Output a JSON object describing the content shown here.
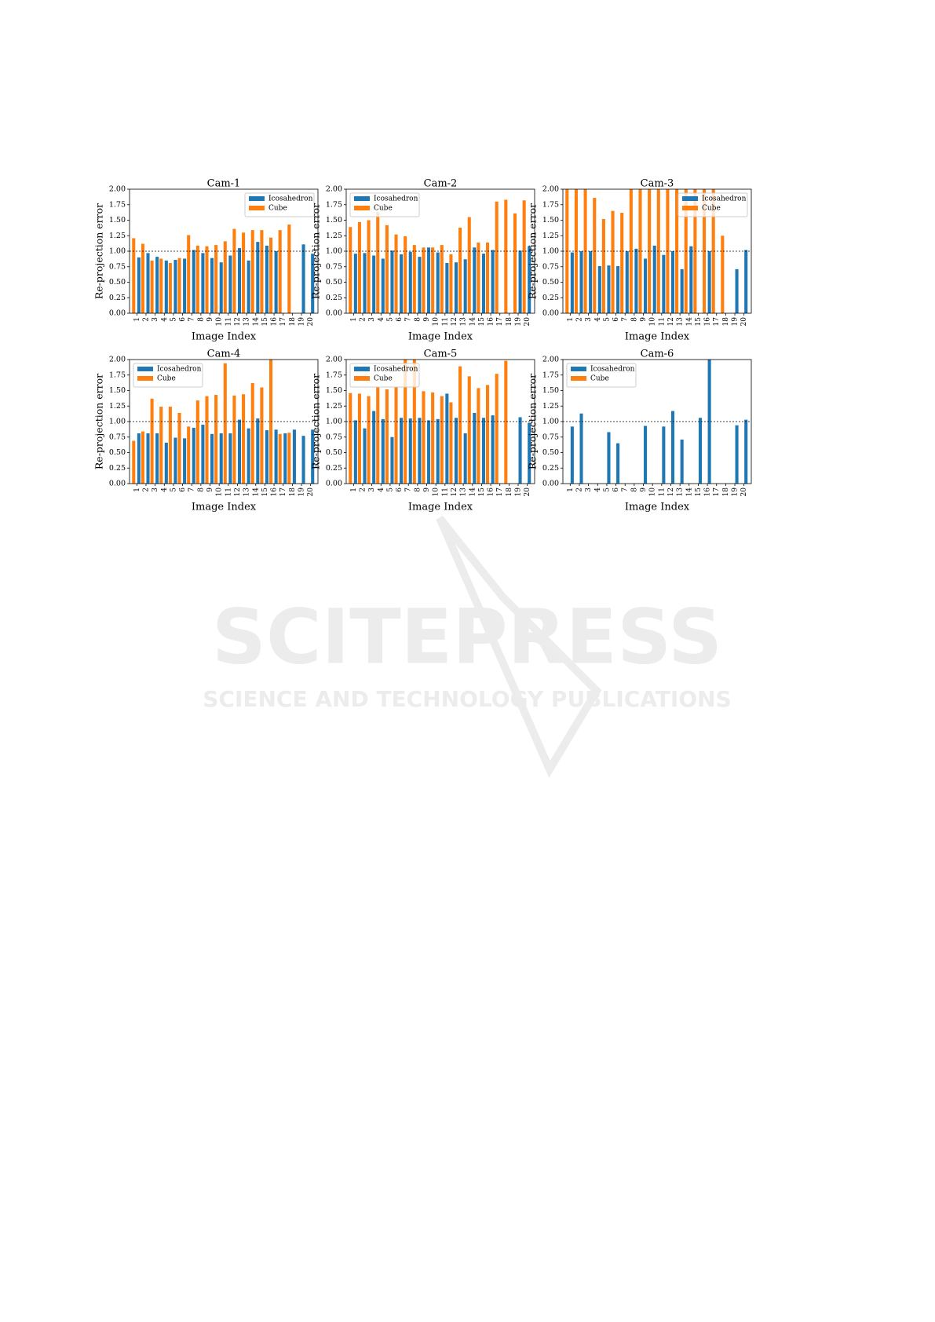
{
  "chart_data": [
    {
      "type": "bar",
      "title": "Cam-1",
      "xlabel": "Image Index",
      "ylabel": "Re-projection error",
      "categories": [
        "1",
        "2",
        "3",
        "4",
        "5",
        "6",
        "7",
        "8",
        "9",
        "10",
        "11",
        "12",
        "13",
        "14",
        "15",
        "16",
        "17",
        "18",
        "19",
        "20"
      ],
      "series": [
        {
          "name": "Icosahedron",
          "color": "#1f77b4",
          "values": [
            0.9,
            0.97,
            0.91,
            0.85,
            0.86,
            0.88,
            1.02,
            0.97,
            0.89,
            0.82,
            0.93,
            1.05,
            0.85,
            1.15,
            1.09,
            1.0,
            null,
            null,
            1.11,
            0.96
          ]
        },
        {
          "name": "Cube",
          "color": "#ff7f0e",
          "values": [
            1.21,
            1.12,
            0.85,
            0.88,
            0.81,
            0.89,
            1.26,
            1.09,
            1.08,
            1.1,
            1.16,
            1.36,
            1.3,
            1.34,
            1.34,
            1.22,
            1.34,
            1.43,
            null,
            null
          ]
        }
      ],
      "ylim": [
        0,
        2
      ],
      "yticks": [
        {
          "value": 0,
          "label": "0.00"
        },
        {
          "value": 0.25,
          "label": "0.25"
        },
        {
          "value": 0.5,
          "label": "0.50"
        },
        {
          "value": 0.75,
          "label": "0.75"
        },
        {
          "value": 1,
          "label": "1.00"
        },
        {
          "value": 1.25,
          "label": "1.25"
        },
        {
          "value": 1.5,
          "label": "1.50"
        },
        {
          "value": 1.75,
          "label": "1.75"
        },
        {
          "value": 2,
          "label": "2.00"
        }
      ],
      "hline": 1,
      "legend": "upper right"
    },
    {
      "type": "bar",
      "title": "Cam-2",
      "xlabel": "Image Index",
      "ylabel": "Re-projection error",
      "categories": [
        "1",
        "2",
        "3",
        "4",
        "5",
        "6",
        "7",
        "8",
        "9",
        "10",
        "11",
        "12",
        "13",
        "14",
        "15",
        "16",
        "17",
        "18",
        "19",
        "20"
      ],
      "series": [
        {
          "name": "Icosahedron",
          "color": "#1f77b4",
          "values": [
            0.96,
            0.97,
            0.93,
            0.88,
            1.01,
            0.95,
            0.99,
            0.91,
            1.06,
            0.98,
            0.81,
            0.82,
            0.87,
            1.06,
            0.96,
            1.02,
            null,
            null,
            1.01,
            1.08
          ]
        },
        {
          "name": "Cube",
          "color": "#ff7f0e",
          "values": [
            1.39,
            1.47,
            1.5,
            1.63,
            1.42,
            1.27,
            1.24,
            1.1,
            1.06,
            1.06,
            1.1,
            0.95,
            1.38,
            1.55,
            1.14,
            1.14,
            1.8,
            1.83,
            1.61,
            1.82
          ]
        }
      ],
      "ylim": [
        0,
        2
      ],
      "yticks": [
        {
          "value": 0,
          "label": "0.00"
        },
        {
          "value": 0.25,
          "label": "0.25"
        },
        {
          "value": 0.5,
          "label": "0.50"
        },
        {
          "value": 0.75,
          "label": "0.75"
        },
        {
          "value": 1,
          "label": "1.00"
        },
        {
          "value": 1.25,
          "label": "1.25"
        },
        {
          "value": 1.5,
          "label": "1.50"
        },
        {
          "value": 1.75,
          "label": "1.75"
        },
        {
          "value": 2,
          "label": "2.00"
        }
      ],
      "hline": 1,
      "legend": "upper left"
    },
    {
      "type": "bar",
      "title": "Cam-3",
      "xlabel": "Image Index",
      "ylabel": "Re-projection error",
      "categories": [
        "1",
        "2",
        "3",
        "4",
        "5",
        "6",
        "7",
        "8",
        "9",
        "10",
        "11",
        "12",
        "13",
        "14",
        "15",
        "16",
        "17",
        "18",
        "19",
        "20"
      ],
      "series": [
        {
          "name": "Icosahedron",
          "color": "#1f77b4",
          "values": [
            0.98,
            1.0,
            1.0,
            0.76,
            0.77,
            0.76,
            1.0,
            1.04,
            0.88,
            1.09,
            0.94,
            1.0,
            0.71,
            1.08,
            null,
            1.0,
            null,
            null,
            0.71,
            1.02
          ]
        },
        {
          "name": "Cube",
          "color": "#ff7f0e",
          "values": [
            2.0,
            2.0,
            2.0,
            1.86,
            1.52,
            1.65,
            1.62,
            2.0,
            2.0,
            2.0,
            2.0,
            2.0,
            2.0,
            2.0,
            2.0,
            2.0,
            2.0,
            1.25,
            null,
            null
          ]
        }
      ],
      "ylim": [
        0,
        2
      ],
      "yticks": [
        {
          "value": 0,
          "label": "0.00"
        },
        {
          "value": 0.25,
          "label": "0.25"
        },
        {
          "value": 0.5,
          "label": "0.50"
        },
        {
          "value": 0.75,
          "label": "0.75"
        },
        {
          "value": 1,
          "label": "1.00"
        },
        {
          "value": 1.25,
          "label": "1.25"
        },
        {
          "value": 1.5,
          "label": "1.50"
        },
        {
          "value": 1.75,
          "label": "1.75"
        },
        {
          "value": 2,
          "label": "2.00"
        }
      ],
      "hline": 1,
      "legend": "upper right"
    },
    {
      "type": "bar",
      "title": "Cam-4",
      "xlabel": "Image Index",
      "ylabel": "Re-projection error",
      "categories": [
        "1",
        "2",
        "3",
        "4",
        "5",
        "6",
        "7",
        "8",
        "9",
        "10",
        "11",
        "12",
        "13",
        "14",
        "15",
        "16",
        "17",
        "18",
        "19",
        "20"
      ],
      "series": [
        {
          "name": "Icosahedron",
          "color": "#1f77b4",
          "values": [
            0.81,
            0.81,
            0.81,
            0.66,
            0.74,
            0.73,
            0.9,
            0.95,
            0.8,
            0.81,
            0.81,
            1.03,
            0.89,
            1.05,
            0.86,
            0.87,
            0.81,
            0.87,
            0.77,
            0.87
          ]
        },
        {
          "name": "Cube",
          "color": "#ff7f0e",
          "values": [
            0.69,
            0.84,
            1.37,
            1.24,
            1.24,
            1.14,
            0.92,
            1.34,
            1.41,
            1.43,
            1.94,
            1.42,
            1.44,
            1.62,
            1.55,
            2.0,
            0.8,
            0.82,
            null,
            null
          ]
        }
      ],
      "ylim": [
        0,
        2
      ],
      "yticks": [
        {
          "value": 0,
          "label": "0.00"
        },
        {
          "value": 0.25,
          "label": "0.25"
        },
        {
          "value": 0.5,
          "label": "0.50"
        },
        {
          "value": 0.75,
          "label": "0.75"
        },
        {
          "value": 1,
          "label": "1.00"
        },
        {
          "value": 1.25,
          "label": "1.25"
        },
        {
          "value": 1.5,
          "label": "1.50"
        },
        {
          "value": 1.75,
          "label": "1.75"
        },
        {
          "value": 2,
          "label": "2.00"
        }
      ],
      "hline": 1,
      "legend": "upper left"
    },
    {
      "type": "bar",
      "title": "Cam-5",
      "xlabel": "Image Index",
      "ylabel": "Re-projection error",
      "categories": [
        "1",
        "2",
        "3",
        "4",
        "5",
        "6",
        "7",
        "8",
        "9",
        "10",
        "11",
        "12",
        "13",
        "14",
        "15",
        "16",
        "17",
        "18",
        "19",
        "20"
      ],
      "series": [
        {
          "name": "Icosahedron",
          "color": "#1f77b4",
          "values": [
            1.02,
            0.89,
            1.17,
            1.04,
            0.75,
            1.06,
            1.05,
            1.06,
            1.02,
            1.04,
            1.45,
            1.06,
            0.81,
            1.14,
            1.06,
            1.1,
            null,
            null,
            1.07,
            0.98
          ]
        },
        {
          "name": "Cube",
          "color": "#ff7f0e",
          "values": [
            1.46,
            1.45,
            1.41,
            1.55,
            1.52,
            1.55,
            2.0,
            2.0,
            1.49,
            1.47,
            1.41,
            1.31,
            1.89,
            1.73,
            1.54,
            1.59,
            1.77,
            1.98,
            null,
            null
          ]
        }
      ],
      "ylim": [
        0,
        2
      ],
      "yticks": [
        {
          "value": 0,
          "label": "0.00"
        },
        {
          "value": 0.25,
          "label": "0.25"
        },
        {
          "value": 0.5,
          "label": "0.50"
        },
        {
          "value": 0.75,
          "label": "0.75"
        },
        {
          "value": 1,
          "label": "1.00"
        },
        {
          "value": 1.25,
          "label": "1.25"
        },
        {
          "value": 1.5,
          "label": "1.50"
        },
        {
          "value": 1.75,
          "label": "1.75"
        },
        {
          "value": 2,
          "label": "2.00"
        }
      ],
      "hline": 1,
      "legend": "upper left"
    },
    {
      "type": "bar",
      "title": "Cam-6",
      "xlabel": "Image Index",
      "ylabel": "Re-projection error",
      "categories": [
        "1",
        "2",
        "3",
        "4",
        "5",
        "6",
        "7",
        "8",
        "9",
        "10",
        "11",
        "12",
        "13",
        "14",
        "15",
        "16",
        "17",
        "18",
        "19",
        "20"
      ],
      "series": [
        {
          "name": "Icosahedron",
          "color": "#1f77b4",
          "values": [
            0.92,
            1.13,
            null,
            null,
            0.83,
            0.65,
            null,
            null,
            0.93,
            null,
            0.92,
            1.17,
            0.71,
            null,
            1.06,
            2.0,
            null,
            null,
            0.94,
            1.03
          ]
        },
        {
          "name": "Cube",
          "color": "#ff7f0e",
          "values": [
            null,
            null,
            null,
            null,
            null,
            null,
            null,
            null,
            null,
            null,
            null,
            null,
            null,
            null,
            null,
            null,
            null,
            null,
            null,
            null
          ]
        }
      ],
      "ylim": [
        0,
        2
      ],
      "yticks": [
        {
          "value": 0,
          "label": "0.00"
        },
        {
          "value": 0.25,
          "label": "0.25"
        },
        {
          "value": 0.5,
          "label": "0.50"
        },
        {
          "value": 0.75,
          "label": "0.75"
        },
        {
          "value": 1,
          "label": "1.00"
        },
        {
          "value": 1.25,
          "label": "1.25"
        },
        {
          "value": 1.5,
          "label": "1.50"
        },
        {
          "value": 1.75,
          "label": "1.75"
        },
        {
          "value": 2,
          "label": "2.00"
        }
      ],
      "hline": 1,
      "legend": "upper left"
    }
  ],
  "watermark": {
    "title": "SCITEPRESS",
    "subtitle": "SCIENCE AND TECHNOLOGY PUBLICATIONS"
  }
}
